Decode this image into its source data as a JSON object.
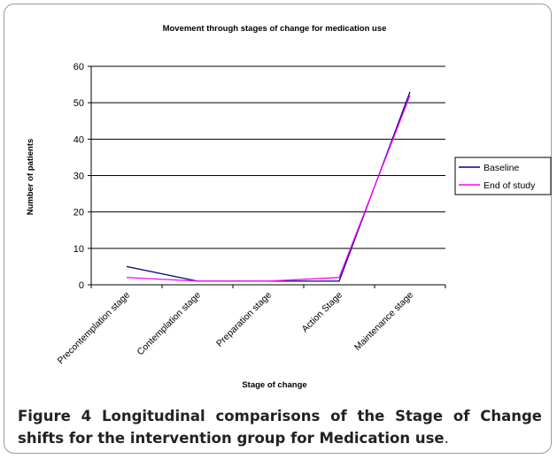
{
  "chart_data": {
    "type": "line",
    "title": "Movement through stages of change for medication use",
    "x_label": "Stage of change",
    "y_label": "Number of patients",
    "categories": [
      "Precontemplation stage",
      "Contemplation stage",
      "Preparation stage",
      "Action Stage",
      "Maintenance stage"
    ],
    "series": [
      {
        "name": "Baseline",
        "color": "#000080",
        "values": [
          5,
          1,
          1,
          1,
          53
        ]
      },
      {
        "name": "End of study",
        "color": "#ff00ff",
        "values": [
          2,
          1,
          1,
          2,
          52
        ]
      }
    ],
    "ylim": [
      0,
      60
    ],
    "yticks": [
      0,
      10,
      20,
      30,
      40,
      50,
      60
    ],
    "grid": true,
    "legend": "right"
  },
  "caption": {
    "text": "Figure 4 Longitudinal comparisons of the Stage of Change shifts for the intervention group for Medication use",
    "end": "."
  }
}
